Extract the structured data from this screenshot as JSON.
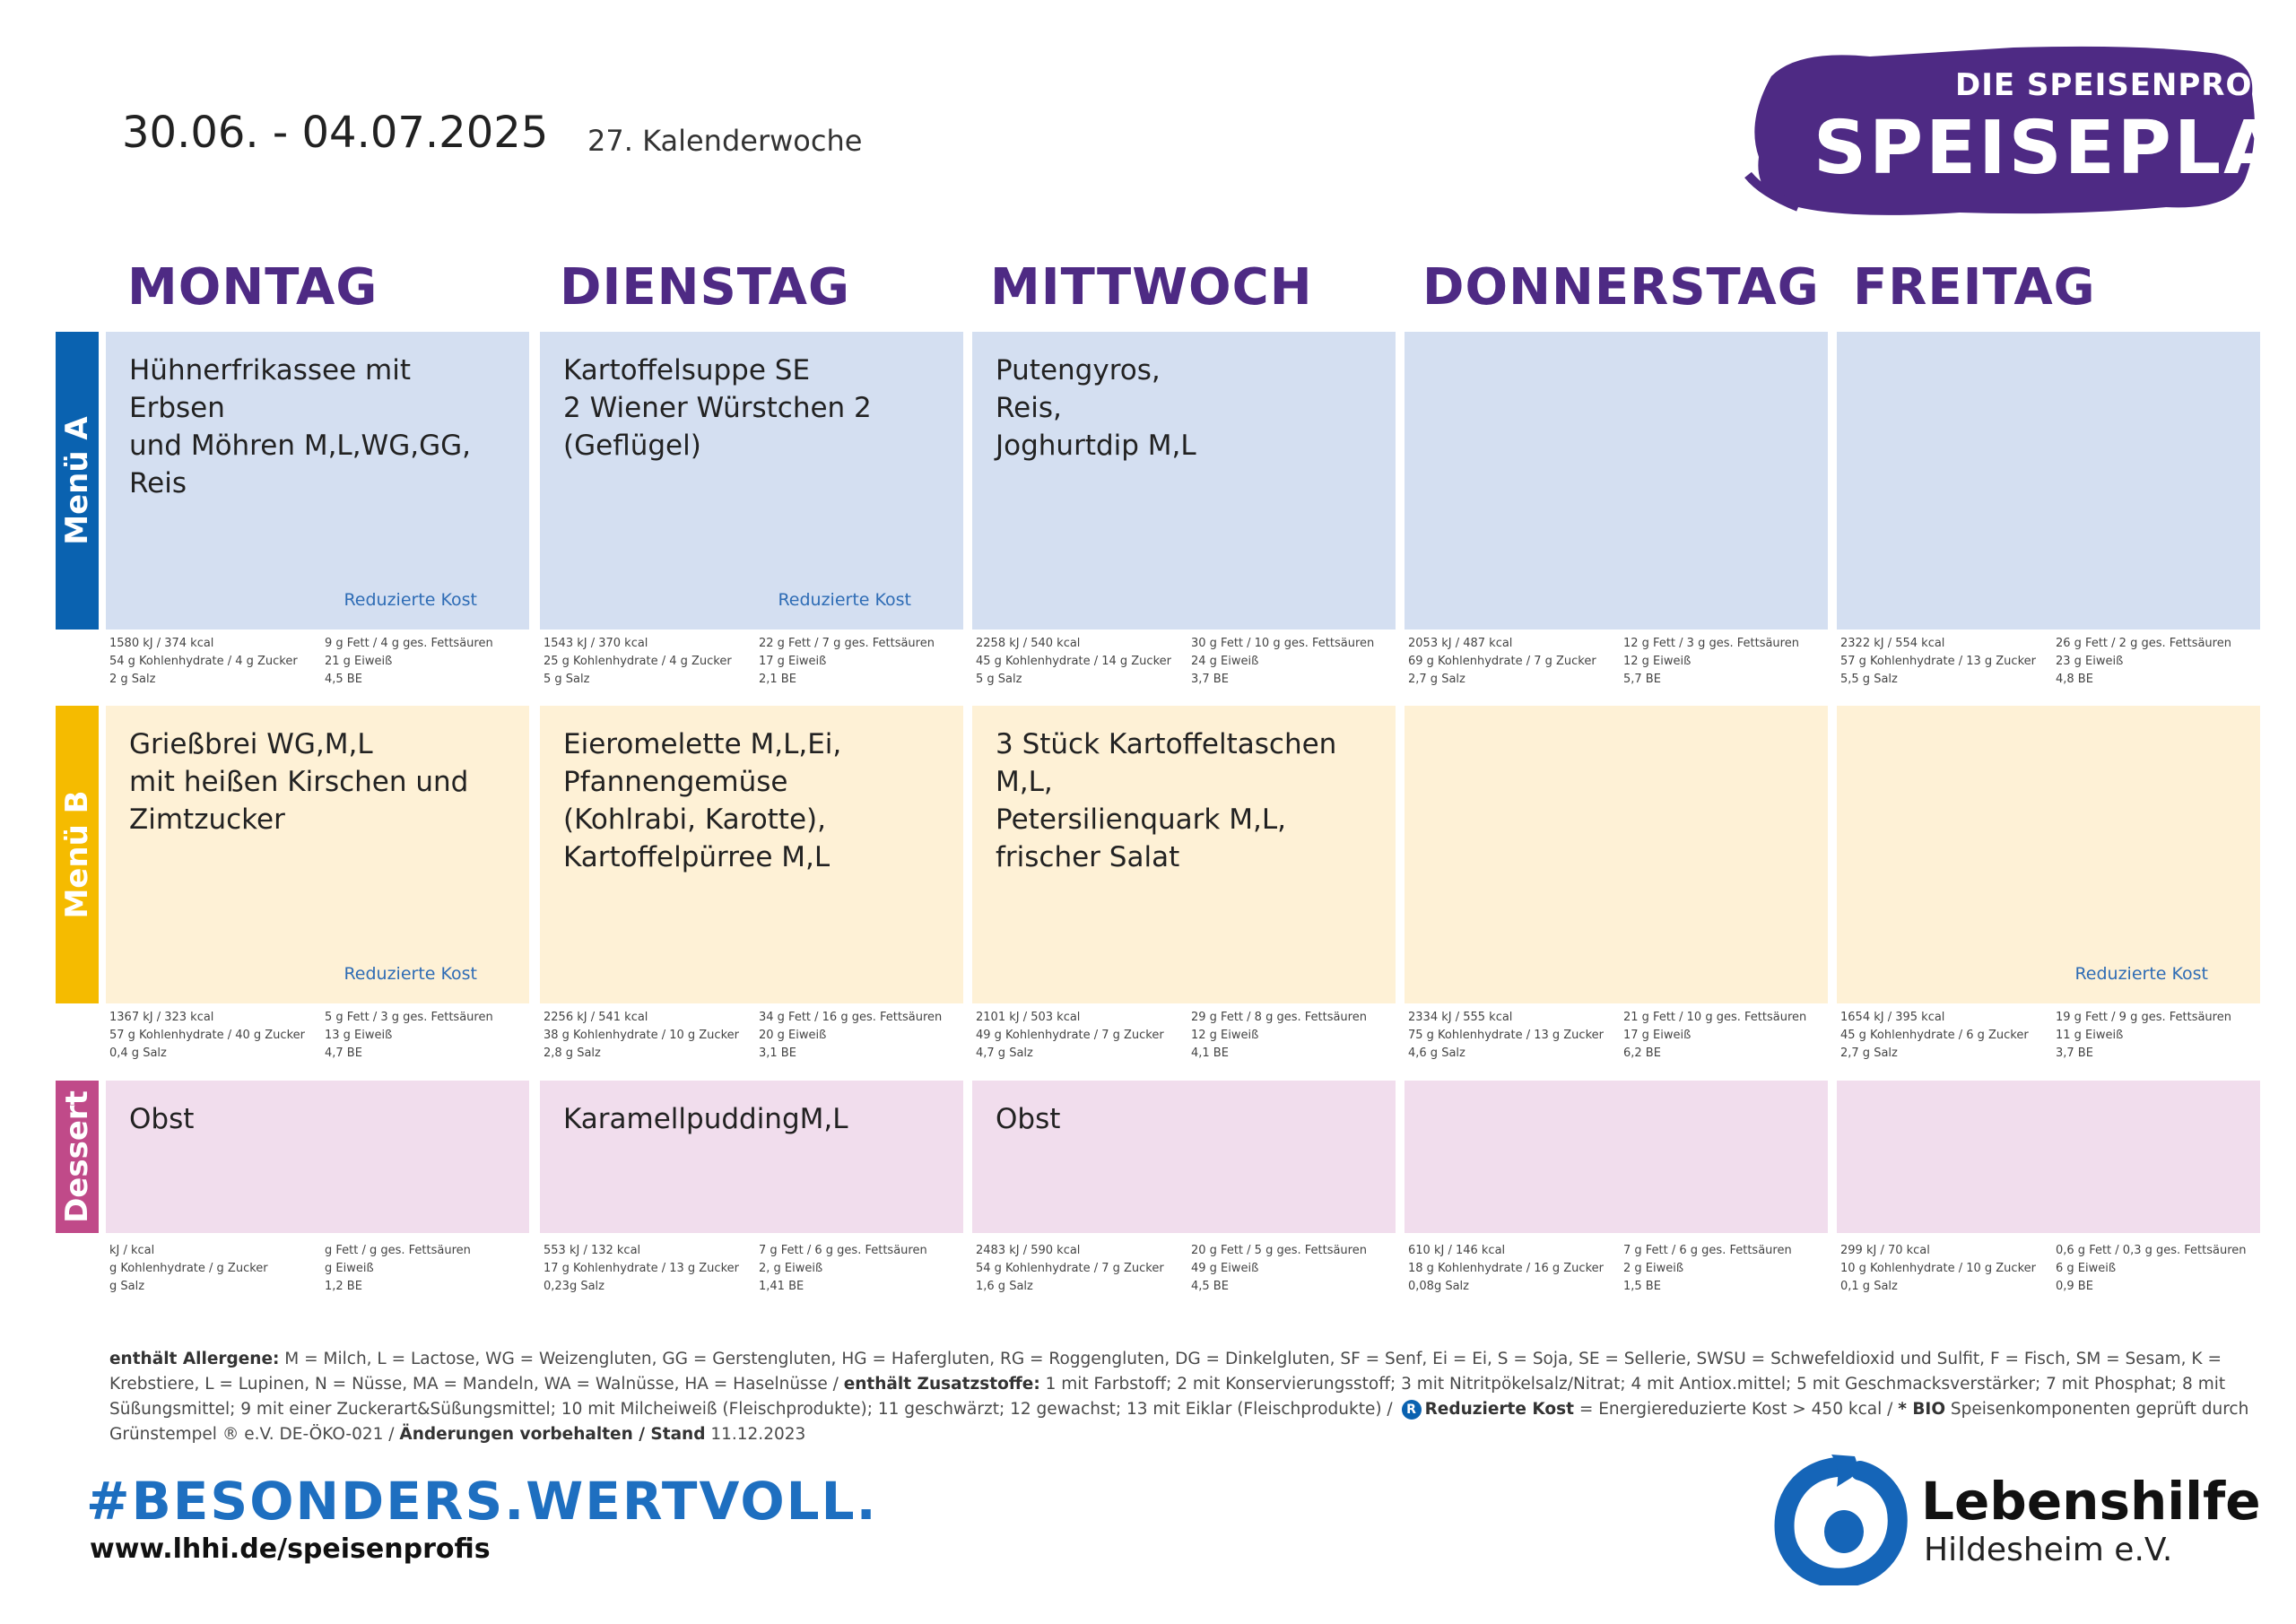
{
  "header": {
    "date_range": "30.06.  - 04.07.2025",
    "week": "27. Kalenderwoche",
    "brand_small": "DIE SPEISENPROFIS",
    "brand_title": "SPEISEPLAN"
  },
  "colors": {
    "purple": "#4e2a84",
    "menu_a_bar": "#0a62b0",
    "menu_b_bar": "#f5bb00",
    "dessert_bar": "#c04a89",
    "menu_a_bg": "#d4dff1",
    "menu_b_bg": "#fef1d6",
    "dessert_bg": "#f1dded"
  },
  "days": [
    "MONTAG",
    "DIENSTAG",
    "MITTWOCH",
    "DONNERSTAG",
    "FREITAG"
  ],
  "rows": [
    {
      "label": "Menü A",
      "cells": [
        {
          "dish": "Hühnerfrikassee mit Erbsen\nund Möhren M,L,WG,GG,\nReis",
          "reduced": "Reduzierte Kost"
        },
        {
          "dish": "Kartoffelsuppe SE\n2 Wiener Würstchen 2\n(Geflügel)",
          "reduced": "Reduzierte Kost"
        },
        {
          "dish": "Putengyros,\nReis,\nJoghurtdip M,L",
          "reduced": ""
        },
        {
          "dish": "",
          "reduced": ""
        },
        {
          "dish": "",
          "reduced": ""
        }
      ],
      "nutrition": [
        {
          "l1a": "1580 kJ / 374   kcal",
          "l1b": "9     g Fett / 4     g ges. Fettsäuren",
          "l2a": "54    g Kohlenhydrate / 4    g Zucker",
          "l2b": "21 g Eiweiß",
          "l3a": "2    g Salz",
          "l3b": "4,5    BE"
        },
        {
          "l1a": "1543 kJ / 370   kcal",
          "l1b": "22    g Fett / 7     g ges. Fettsäuren",
          "l2a": "25    g Kohlenhydrate / 4    g Zucker",
          "l2b": "17 g Eiweiß",
          "l3a": "5    g Salz",
          "l3b": "2,1    BE"
        },
        {
          "l1a": "2258 kJ / 540   kcal",
          "l1b": "30    g Fett / 10   g ges. Fettsäuren",
          "l2a": "45    g Kohlenhydrate / 14 g Zucker",
          "l2b": "24 g Eiweiß",
          "l3a": "5    g Salz",
          "l3b": "3,7    BE"
        },
        {
          "l1a": "2053 kJ / 487   kcal",
          "l1b": "12    g Fett / 3     g ges. Fettsäuren",
          "l2a": "69    g Kohlenhydrate / 7    g Zucker",
          "l2b": "12 g Eiweiß",
          "l3a": "2,7  g Salz",
          "l3b": "5,7    BE"
        },
        {
          "l1a": "2322 kJ / 554   kcal",
          "l1b": "26    g Fett / 2     g ges. Fettsäuren",
          "l2a": "57    g Kohlenhydrate / 13 g Zucker",
          "l2b": "23 g Eiweiß",
          "l3a": "5,5  g Salz",
          "l3b": "4,8    BE"
        }
      ]
    },
    {
      "label": "Menü B",
      "cells": [
        {
          "dish": "Grießbrei WG,M,L\nmit heißen Kirschen und\nZimtzucker",
          "reduced": "Reduzierte Kost"
        },
        {
          "dish": "Eieromelette M,L,Ei,\nPfannengemüse\n(Kohlrabi, Karotte),\nKartoffelpürree M,L",
          "reduced": ""
        },
        {
          "dish": "3 Stück Kartoffeltaschen\nM,L,\nPetersilienquark M,L,\nfrischer Salat",
          "reduced": ""
        },
        {
          "dish": "",
          "reduced": ""
        },
        {
          "dish": "",
          "reduced": "Reduzierte Kost"
        }
      ],
      "nutrition": [
        {
          "l1a": "1367 kJ / 323   kcal",
          "l1b": "5     g Fett / 3     g ges. Fettsäuren",
          "l2a": "57    g Kohlenhydrate / 40  g Zucker",
          "l2b": "13 g Eiweiß",
          "l3a": "0,4  g Salz",
          "l3b": "4,7    BE"
        },
        {
          "l1a": "2256 kJ / 541   kcal",
          "l1b": "34    g Fett / 16   g ges. Fettsäuren",
          "l2a": "38    g Kohlenhydrate / 10 g Zucker",
          "l2b": "20 g Eiweiß",
          "l3a": "2,8  g Salz",
          "l3b": "3,1    BE"
        },
        {
          "l1a": "2101 kJ / 503   kcal",
          "l1b": "29    g Fett / 8     g ges. Fettsäuren",
          "l2a": "49    g Kohlenhydrate / 7    g Zucker",
          "l2b": "12 g Eiweiß",
          "l3a": "4,7  g Salz",
          "l3b": "4,1    BE"
        },
        {
          "l1a": "2334 kJ / 555   kcal",
          "l1b": "21    g Fett / 10   g ges. Fettsäuren",
          "l2a": "75    g Kohlenhydrate / 13 g Zucker",
          "l2b": "17 g Eiweiß",
          "l3a": "4,6  g Salz",
          "l3b": "6,2    BE"
        },
        {
          "l1a": "1654 kJ / 395   kcal",
          "l1b": "19    g Fett / 9     g ges. Fettsäuren",
          "l2a": "45    g Kohlenhydrate / 6    g Zucker",
          "l2b": "11 g Eiweiß",
          "l3a": "2,7  g Salz",
          "l3b": "3,7    BE"
        }
      ]
    },
    {
      "label": "Dessert",
      "cells": [
        {
          "dish": "Obst",
          "reduced": ""
        },
        {
          "dish": " KaramellpuddingM,L",
          "reduced": ""
        },
        {
          "dish": "Obst",
          "reduced": ""
        },
        {
          "dish": "",
          "reduced": ""
        },
        {
          "dish": "",
          "reduced": ""
        }
      ],
      "nutrition": [
        {
          "l1a": "         kJ /          kcal",
          "l1b": "      g Fett /          g ges. Fettsäuren",
          "l2a": "         g Kohlenhydrate /      g Zucker",
          "l2b": "   g Eiweiß",
          "l3a": "         g Salz",
          "l3b": "1,2    BE"
        },
        {
          "l1a": "553   kJ / 132   kcal",
          "l1b": "7     g Fett / 6     g ges. Fettsäuren",
          "l2a": "17    g Kohlenhydrate / 13 g Zucker",
          "l2b": "2,  g Eiweiß",
          "l3a": "0,23g Salz",
          "l3b": "1,41   BE"
        },
        {
          "l1a": "2483 kJ / 590   kcal",
          "l1b": "20    g Fett / 5     g ges. Fettsäuren",
          "l2a": "54    g Kohlenhydrate / 7    g Zucker",
          "l2b": "49 g Eiweiß",
          "l3a": "1,6  g Salz",
          "l3b": "4,5    BE"
        },
        {
          "l1a": "610   kJ / 146   kcal",
          "l1b": "7     g Fett / 6     g ges. Fettsäuren",
          "l2a": "18    g Kohlenhydrate / 16 g Zucker",
          "l2b": "2    g Eiweiß",
          "l3a": "0,08g Salz",
          "l3b": "1,5    BE"
        },
        {
          "l1a": "299   kJ / 70     kcal",
          "l1b": "0,6  g Fett / 0,3  g ges. Fettsäuren",
          "l2a": "10    g Kohlenhydrate / 10 g Zucker",
          "l2b": "6    g Eiweiß",
          "l3a": "0,1  g Salz",
          "l3b": "0,9    BE"
        }
      ]
    }
  ],
  "legend": {
    "allergens_label": "enthält Allergene:",
    "allergens_text": " M = Milch, L = Lactose, WG = Weizengluten, GG = Gerstengluten, HG = Hafergluten, RG = Roggengluten, DG = Dinkelgluten, SF = Senf, Ei = Ei, S = Soja, SE = Sellerie, SWSU = Schwefeldioxid und Sulfit, F = Fisch, SM = Sesam, K = Krebstiere, L = Lupinen, N = Nüsse, MA = Mandeln, WA = Walnüsse, HA =  Haselnüsse / ",
    "additives_label": "enthält Zusatzstoffe:",
    "additives_text": " 1 mit Farbstoff; 2 mit Konservierungsstoff; 3 mit Nitritpökelsalz/Nitrat; 4 mit Antiox.mittel; 5 mit Geschmacksverstärker; 7 mit Phosphat; 8 mit Süßungsmittel; 9 mit einer Zuckerart&Süßungsmittel; 10 mit Milcheiweiß (Fleischprodukte); 11 geschwärzt; 12 gewachst; 13 mit Eiklar (Fleischprodukte) / ",
    "r_icon": "R",
    "reduced_label": "Reduzierte Kost",
    "reduced_text": " = Energiereduzierte Kost > 450 kcal / ",
    "bio_label": "* BIO",
    "bio_text": " Speisenkomponenten geprüft durch Grünstempel ® e.V. DE-ÖKO-021 / ",
    "changes_label": "Änderungen vorbehalten / Stand",
    "stand": "  11.12.2023"
  },
  "footer": {
    "hashtag": "#BESONDERS.WERTVOLL.",
    "website": "www.lhhi.de/speisenprofis",
    "org_name": "Lebenshilfe",
    "org_place": "Hildesheim e.V.",
    "logo_icon": "lebenshilfe-logo-icon"
  }
}
